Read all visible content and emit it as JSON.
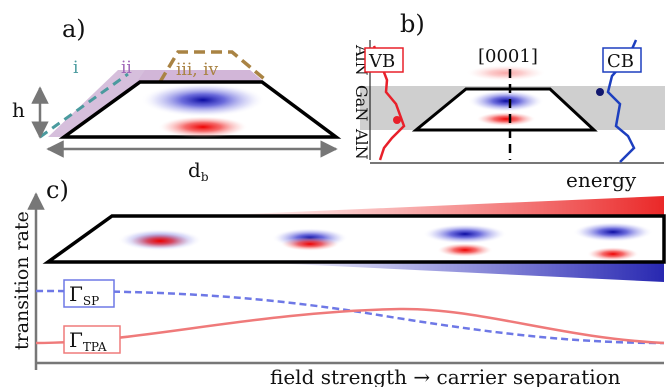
{
  "colors": {
    "red": "#e8202a",
    "blue": "#1d3fbf",
    "teal": "#4a9a9e",
    "purple": "#a067b8",
    "brown": "#a98343",
    "gray_band": "#cfcfcf",
    "sp_curve": "#6e78e6",
    "tpa_curve": "#ef7a7a",
    "axis_gray": "#777777"
  },
  "panel_a": {
    "label": "a)",
    "outline_labels": {
      "i": "i",
      "ii": "ii",
      "iii_iv": "iii, iv"
    },
    "height_label": "h",
    "base_label": "d",
    "base_subscript": "b"
  },
  "panel_b": {
    "label": "b)",
    "layers": [
      "AlN",
      "GaN",
      "AlN"
    ],
    "vb_label": "VB",
    "cb_label": "CB",
    "axis_label": "[0001]",
    "energy_label": "energy"
  },
  "panel_c": {
    "label": "c)",
    "y_label": "transition rate",
    "x_label": "field strength → carrier separation",
    "gamma_sp": {
      "symbol": "Γ",
      "sub": "SP"
    },
    "gamma_tpa": {
      "symbol": "Γ",
      "sub": "TPA"
    }
  }
}
